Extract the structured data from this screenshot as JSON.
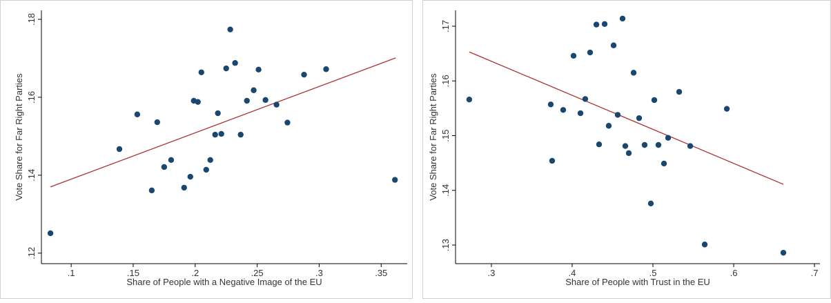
{
  "chart_data": [
    {
      "type": "scatter",
      "x_label": "Share of People with a Negative Image of the EU",
      "y_label": "Vote Share for Far Right Parties",
      "color": "#1a476f",
      "x": [
        0.0833,
        0.1389,
        0.1533,
        0.165,
        0.175,
        0.1806,
        0.1694,
        0.1911,
        0.1961,
        0.1989,
        0.2022,
        0.205,
        0.2089,
        0.2122,
        0.2161,
        0.2183,
        0.2211,
        0.225,
        0.2283,
        0.2322,
        0.2367,
        0.2417,
        0.2472,
        0.2511,
        0.2567,
        0.2656,
        0.2744,
        0.2878,
        0.3056,
        0.3611
      ],
      "y": [
        0.1251,
        0.1467,
        0.1556,
        0.1361,
        0.1421,
        0.1439,
        0.1536,
        0.1368,
        0.1396,
        0.1591,
        0.1588,
        0.1664,
        0.1414,
        0.1439,
        0.1504,
        0.1559,
        0.1506,
        0.1674,
        0.1774,
        0.1688,
        0.1504,
        0.1591,
        0.1618,
        0.1671,
        0.1593,
        0.1581,
        0.1535,
        0.1658,
        0.1672,
        0.1388
      ],
      "fit_line": {
        "color": "#b03030",
        "x": [
          0.0833,
          0.3617
        ],
        "y": [
          0.137,
          0.1701
        ]
      },
      "xlim": [
        0.076,
        0.371
      ],
      "ylim": [
        0.1173,
        0.1823
      ],
      "xticks": [
        {
          "value": 0.1,
          "label": ".1"
        },
        {
          "value": 0.15,
          "label": ".15"
        },
        {
          "value": 0.2,
          "label": ".2"
        },
        {
          "value": 0.25,
          "label": ".25"
        },
        {
          "value": 0.3,
          "label": ".3"
        },
        {
          "value": 0.35,
          "label": ".35"
        }
      ],
      "yticks": [
        {
          "value": 0.12,
          "label": ".12"
        },
        {
          "value": 0.14,
          "label": ".14"
        },
        {
          "value": 0.16,
          "label": ".16"
        },
        {
          "value": 0.18,
          "label": ".18"
        }
      ]
    },
    {
      "type": "scatter",
      "x_label": "Share of People with Trust in the EU",
      "y_label": "Vote Share for Far Right Parties",
      "color": "#1a476f",
      "x": [
        0.2726,
        0.3735,
        0.3889,
        0.3752,
        0.4017,
        0.4103,
        0.4162,
        0.4222,
        0.43,
        0.4402,
        0.4333,
        0.4453,
        0.4513,
        0.4564,
        0.4624,
        0.4658,
        0.4701,
        0.4761,
        0.4829,
        0.4897,
        0.4974,
        0.5017,
        0.5068,
        0.5137,
        0.5188,
        0.5325,
        0.5462,
        0.5641,
        0.5915,
        0.6615
      ],
      "y": [
        0.1566,
        0.1557,
        0.1547,
        0.1454,
        0.1646,
        0.1541,
        0.1567,
        0.1652,
        0.1703,
        0.1704,
        0.1484,
        0.1518,
        0.1665,
        0.1538,
        0.1714,
        0.1481,
        0.1468,
        0.1615,
        0.1532,
        0.1483,
        0.1376,
        0.1565,
        0.1483,
        0.1449,
        0.1496,
        0.158,
        0.1481,
        0.1301,
        0.1549,
        0.1286
      ],
      "fit_line": {
        "color": "#b03030",
        "x": [
          0.2726,
          0.6615
        ],
        "y": [
          0.1653,
          0.1411
        ]
      },
      "xlim": [
        0.2556,
        0.7068
      ],
      "ylim": [
        0.1266,
        0.1729
      ],
      "xticks": [
        {
          "value": 0.3,
          "label": ".3"
        },
        {
          "value": 0.4,
          "label": ".4"
        },
        {
          "value": 0.5,
          "label": ".5"
        },
        {
          "value": 0.6,
          "label": ".6"
        },
        {
          "value": 0.7,
          "label": ".7"
        }
      ],
      "yticks": [
        {
          "value": 0.13,
          "label": ".13"
        },
        {
          "value": 0.14,
          "label": ".14"
        },
        {
          "value": 0.15,
          "label": ".15"
        },
        {
          "value": 0.16,
          "label": ".16"
        },
        {
          "value": 0.17,
          "label": ".17"
        }
      ]
    }
  ]
}
